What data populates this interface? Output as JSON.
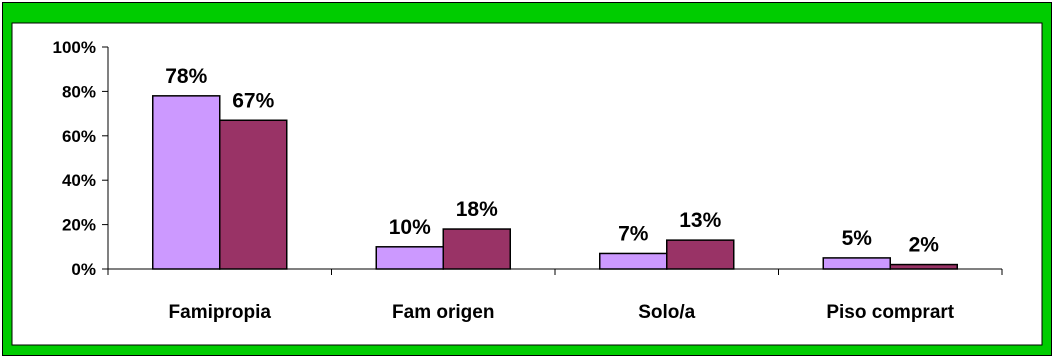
{
  "chart_data": {
    "type": "bar",
    "categories": [
      "Famipropia",
      "Fam origen",
      "Solo/a",
      "Piso comprart"
    ],
    "series": [
      {
        "values": [
          78,
          10,
          7,
          5
        ],
        "labels": [
          "78%",
          "10%",
          "7%",
          "5%"
        ],
        "color": "#cc99ff"
      },
      {
        "values": [
          67,
          18,
          13,
          2
        ],
        "labels": [
          "67%",
          "18%",
          "13%",
          "2%"
        ],
        "color": "#993366"
      }
    ],
    "y_ticks": [
      "0%",
      "20%",
      "40%",
      "60%",
      "80%",
      "100%"
    ],
    "ylim": [
      0,
      100
    ],
    "title": "",
    "xlabel": "",
    "ylabel": "",
    "grid": false,
    "legend": "none",
    "background_color": "#00cc00",
    "plot_background": "#ffffff"
  }
}
